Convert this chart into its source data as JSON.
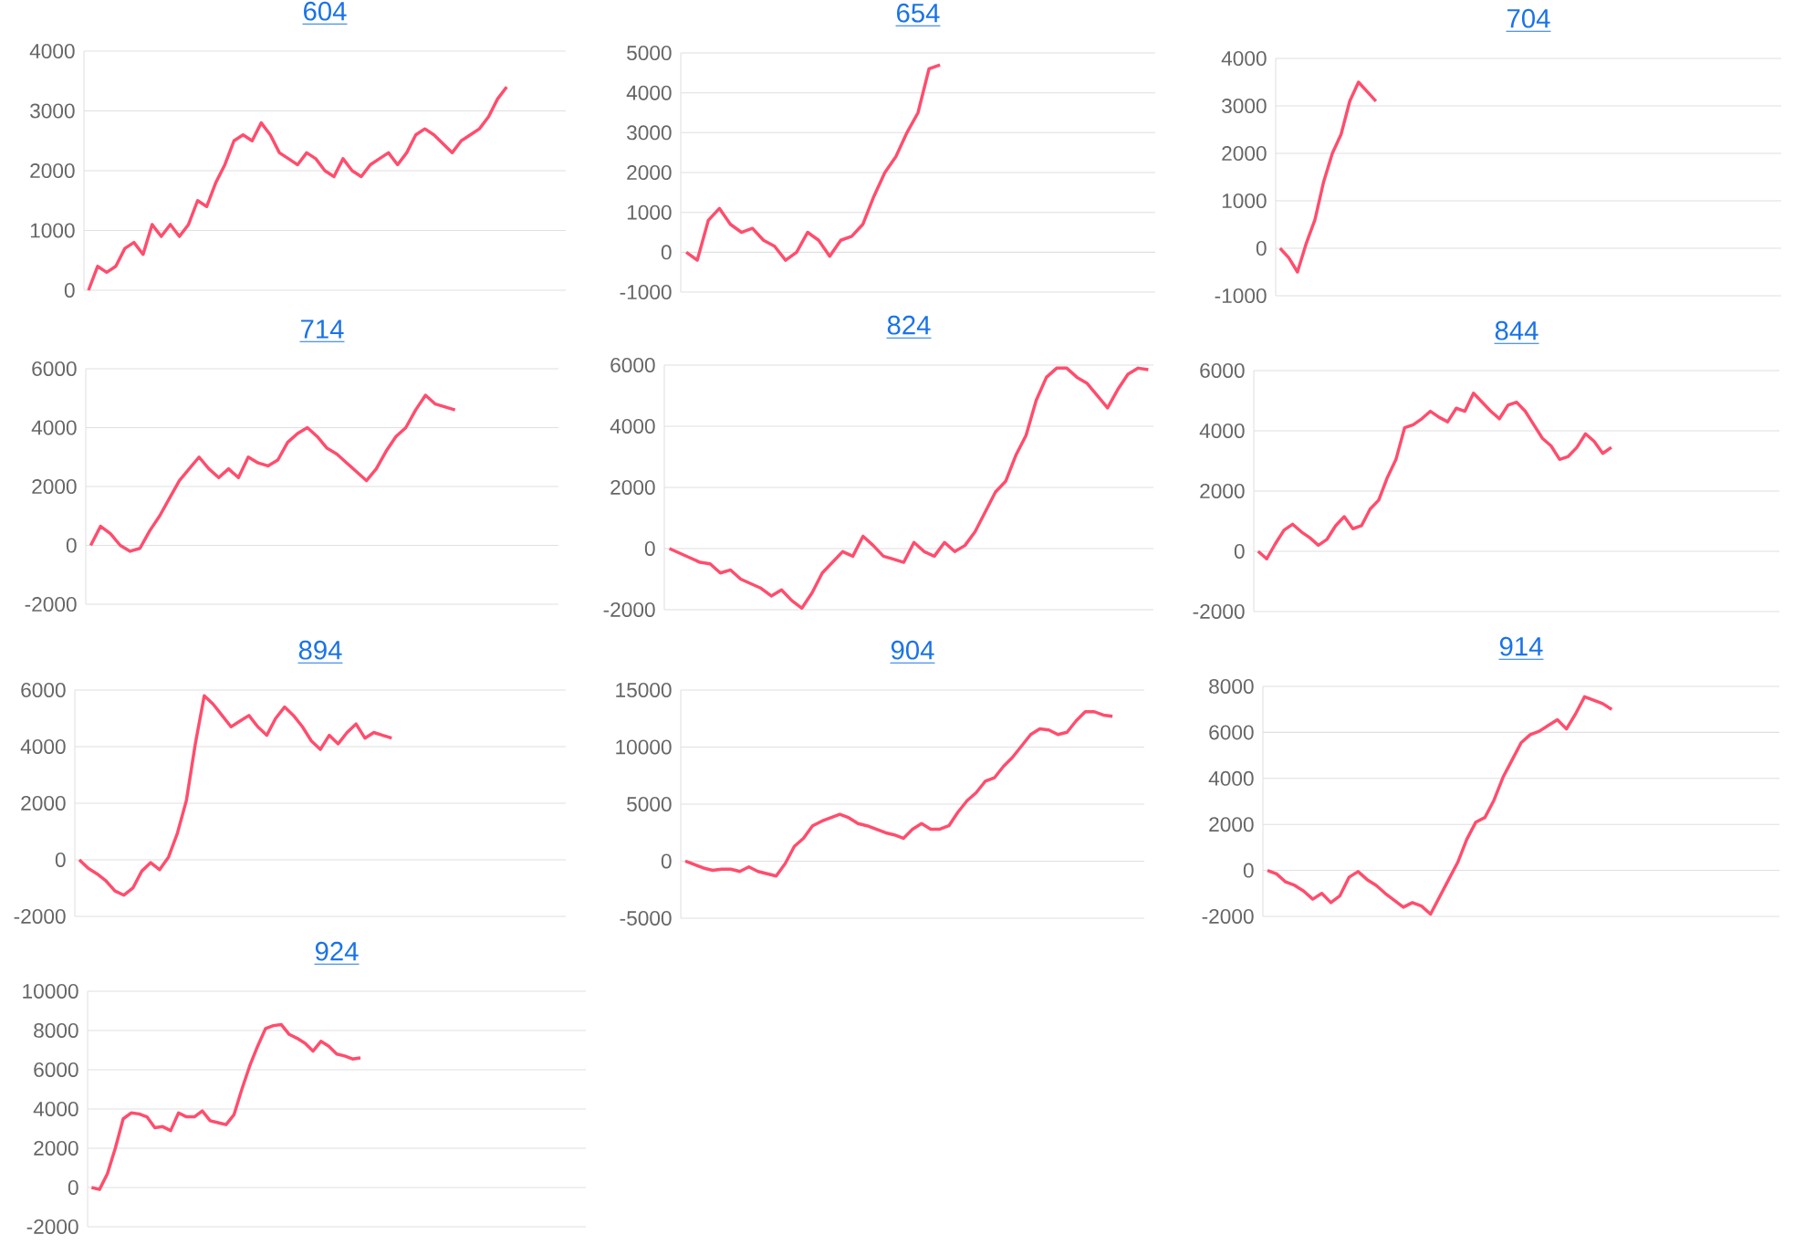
{
  "chart_data": [
    {
      "type": "line",
      "title": "604",
      "color": "#ff4d6d",
      "grid": "y",
      "tick_labels": "y",
      "ylim": [
        0,
        4000
      ],
      "yticks": [
        0,
        1000,
        2000,
        3000,
        4000
      ],
      "categories": [
        null,
        null,
        null,
        null,
        null,
        null,
        null,
        null,
        null,
        null,
        null,
        null,
        null,
        null,
        null,
        null,
        null,
        null,
        null,
        null,
        null,
        null,
        null,
        null,
        null,
        null,
        null,
        null,
        null,
        null,
        null,
        null,
        null,
        null,
        null,
        null,
        null,
        null,
        null,
        null,
        null,
        null,
        null,
        null,
        null,
        null,
        null,
        null,
        null,
        null,
        null,
        null,
        null
      ],
      "values": [
        0,
        400,
        300,
        400,
        700,
        800,
        600,
        1100,
        900,
        1100,
        900,
        1100,
        1500,
        1400,
        1800,
        2100,
        2500,
        2600,
        2500,
        2800,
        2600,
        2300,
        2200,
        2100,
        2300,
        2200,
        2000,
        1900,
        2200,
        2000,
        1900,
        2100,
        2200,
        2300,
        2100,
        2300,
        2600,
        2700,
        2600,
        2450,
        2300,
        2500,
        2600,
        2700,
        2900,
        3200,
        3400,
        null,
        null,
        null,
        null,
        null,
        null
      ]
    },
    {
      "type": "line",
      "title": "654",
      "color": "#ff4d6d",
      "grid": "y",
      "tick_labels": "y",
      "ylim": [
        -1000,
        5000
      ],
      "yticks": [
        -1000,
        0,
        1000,
        2000,
        3000,
        4000,
        5000
      ],
      "categories": [
        null,
        null,
        null,
        null,
        null,
        null,
        null,
        null,
        null,
        null,
        null,
        null,
        null,
        null,
        null,
        null,
        null,
        null,
        null,
        null,
        null,
        null,
        null,
        null,
        null,
        null,
        null,
        null,
        null,
        null,
        null,
        null,
        null,
        null,
        null,
        null,
        null,
        null,
        null,
        null,
        null,
        null,
        null
      ],
      "values": [
        0,
        -200,
        800,
        1100,
        700,
        500,
        600,
        300,
        150,
        -200,
        0,
        500,
        300,
        -100,
        300,
        400,
        700,
        1400,
        2000,
        2400,
        3000,
        3500,
        4600,
        4700,
        null,
        null,
        null,
        null,
        null,
        null,
        null,
        null,
        null,
        null,
        null,
        null,
        null,
        null,
        null,
        null,
        null,
        null,
        null
      ]
    },
    {
      "type": "line",
      "title": "704",
      "color": "#ff4d6d",
      "grid": "y",
      "tick_labels": "y",
      "ylim": [
        -1000,
        4000
      ],
      "yticks": [
        -1000,
        0,
        1000,
        2000,
        3000,
        4000
      ],
      "categories": [
        null,
        null,
        null,
        null,
        null,
        null,
        null,
        null,
        null,
        null,
        null,
        null,
        null,
        null,
        null,
        null,
        null,
        null,
        null,
        null,
        null,
        null,
        null,
        null,
        null,
        null,
        null,
        null,
        null,
        null,
        null,
        null,
        null,
        null,
        null,
        null,
        null,
        null,
        null,
        null,
        null,
        null,
        null,
        null,
        null,
        null,
        null,
        null,
        null,
        null,
        null,
        null,
        null,
        null,
        null,
        null,
        null,
        null
      ],
      "values": [
        0,
        -200,
        -500,
        100,
        600,
        1400,
        2000,
        2400,
        3100,
        3500,
        3300,
        3100,
        null,
        null,
        null,
        null,
        null,
        null,
        null,
        null,
        null,
        null,
        null,
        null,
        null,
        null,
        null,
        null,
        null,
        null,
        null,
        null,
        null,
        null,
        null,
        null,
        null,
        null,
        null,
        null,
        null,
        null,
        null,
        null,
        null,
        null,
        null,
        null,
        null,
        null,
        null,
        null,
        null,
        null,
        null,
        null,
        null,
        null
      ]
    },
    {
      "type": "line",
      "title": "714",
      "color": "#ff4d6d",
      "grid": "y",
      "tick_labels": "y",
      "ylim": [
        -2000,
        6000
      ],
      "yticks": [
        -2000,
        0,
        2000,
        4000,
        6000
      ],
      "categories": [
        null,
        null,
        null,
        null,
        null,
        null,
        null,
        null,
        null,
        null,
        null,
        null,
        null,
        null,
        null,
        null,
        null,
        null,
        null,
        null,
        null,
        null,
        null,
        null,
        null,
        null,
        null,
        null,
        null,
        null,
        null,
        null,
        null,
        null,
        null,
        null,
        null,
        null,
        null,
        null,
        null,
        null,
        null,
        null,
        null,
        null,
        null,
        null
      ],
      "values": [
        0,
        650,
        400,
        0,
        -200,
        -100,
        500,
        1000,
        1600,
        2200,
        2600,
        3000,
        2600,
        2300,
        2600,
        2300,
        3000,
        2800,
        2700,
        2900,
        3500,
        3800,
        4000,
        3700,
        3300,
        3100,
        2800,
        2500,
        2200,
        2600,
        3200,
        3700,
        4000,
        4600,
        5100,
        4800,
        4700,
        4600,
        null,
        null,
        null,
        null,
        null,
        null,
        null,
        null,
        null,
        null
      ]
    },
    {
      "type": "line",
      "title": "824",
      "color": "#ff4d6d",
      "grid": "y",
      "tick_labels": "y",
      "ylim": [
        -2000,
        6000
      ],
      "yticks": [
        -2000,
        0,
        2000,
        4000,
        6000
      ],
      "categories": [
        null,
        null,
        null,
        null,
        null,
        null,
        null,
        null,
        null,
        null,
        null,
        null,
        null,
        null,
        null,
        null,
        null,
        null,
        null,
        null,
        null,
        null,
        null,
        null,
        null,
        null,
        null,
        null,
        null,
        null,
        null,
        null,
        null,
        null,
        null,
        null,
        null,
        null,
        null,
        null,
        null,
        null,
        null,
        null,
        null,
        null,
        null,
        null
      ],
      "values": [
        0,
        -150,
        -300,
        -450,
        -500,
        -800,
        -700,
        -1000,
        -1150,
        -1300,
        -1550,
        -1350,
        -1700,
        -1950,
        -1450,
        -800,
        -450,
        -100,
        -250,
        400,
        100,
        -250,
        -350,
        -450,
        200,
        -100,
        -250,
        200,
        -100,
        100,
        550,
        1200,
        1850,
        2200,
        3050,
        3700,
        4850,
        5600,
        5900,
        5900,
        5600,
        5400,
        5000,
        4600,
        5200,
        5700,
        5900,
        5850
      ]
    },
    {
      "type": "line",
      "title": "844",
      "color": "#ff4d6d",
      "grid": "y",
      "tick_labels": "y",
      "ylim": [
        -2000,
        6000
      ],
      "yticks": [
        -2000,
        0,
        2000,
        4000,
        6000
      ],
      "categories": [
        null,
        null,
        null,
        null,
        null,
        null,
        null,
        null,
        null,
        null,
        null,
        null,
        null,
        null,
        null,
        null,
        null,
        null,
        null,
        null,
        null,
        null,
        null,
        null,
        null,
        null,
        null,
        null,
        null,
        null,
        null,
        null,
        null,
        null,
        null,
        null,
        null,
        null,
        null,
        null,
        null,
        null,
        null,
        null,
        null,
        null,
        null,
        null,
        null,
        null,
        null,
        null,
        null,
        null,
        null,
        null,
        null,
        null,
        null,
        null,
        null
      ],
      "values": [
        0,
        -250,
        250,
        700,
        900,
        650,
        450,
        200,
        400,
        850,
        1150,
        750,
        850,
        1400,
        1700,
        2450,
        3050,
        4100,
        4200,
        4400,
        4650,
        4450,
        4300,
        4750,
        4650,
        5250,
        4950,
        4650,
        4400,
        4850,
        4950,
        4650,
        4200,
        3750,
        3500,
        3050,
        3150,
        3450,
        3900,
        3650,
        3250,
        3450,
        null,
        null,
        null,
        null,
        null,
        null,
        null,
        null,
        null,
        null,
        null,
        null,
        null,
        null,
        null,
        null,
        null,
        null,
        null
      ]
    },
    {
      "type": "line",
      "title": "894",
      "color": "#ff4d6d",
      "grid": "y",
      "tick_labels": "y",
      "ylim": [
        -2000,
        6000
      ],
      "yticks": [
        -2000,
        0,
        2000,
        4000,
        6000
      ],
      "categories": [
        null,
        null,
        null,
        null,
        null,
        null,
        null,
        null,
        null,
        null,
        null,
        null,
        null,
        null,
        null,
        null,
        null,
        null,
        null,
        null,
        null,
        null,
        null,
        null,
        null,
        null,
        null,
        null,
        null,
        null,
        null,
        null,
        null,
        null,
        null,
        null,
        null,
        null,
        null,
        null,
        null,
        null,
        null,
        null,
        null,
        null,
        null,
        null,
        null,
        null,
        null,
        null,
        null,
        null,
        null
      ],
      "values": [
        0,
        -300,
        -500,
        -750,
        -1100,
        -1250,
        -1000,
        -400,
        -100,
        -350,
        100,
        950,
        2100,
        4100,
        5800,
        5500,
        5100,
        4700,
        4900,
        5100,
        4700,
        4400,
        5000,
        5400,
        5100,
        4700,
        4200,
        3900,
        4400,
        4100,
        4500,
        4800,
        4300,
        4500,
        4400,
        4300,
        null,
        null,
        null,
        null,
        null,
        null,
        null,
        null,
        null,
        null,
        null,
        null,
        null,
        null,
        null,
        null,
        null,
        null,
        null
      ]
    },
    {
      "type": "line",
      "title": "904",
      "color": "#ff4d6d",
      "grid": "y",
      "tick_labels": "y",
      "ylim": [
        -5000,
        15000
      ],
      "yticks": [
        -5000,
        0,
        5000,
        10000,
        15000
      ],
      "categories": [
        null,
        null,
        null,
        null,
        null,
        null,
        null,
        null,
        null,
        null,
        null,
        null,
        null,
        null,
        null,
        null,
        null,
        null,
        null,
        null,
        null,
        null,
        null,
        null,
        null,
        null,
        null,
        null,
        null,
        null,
        null,
        null,
        null,
        null,
        null,
        null,
        null,
        null,
        null,
        null,
        null,
        null,
        null,
        null,
        null,
        null,
        null,
        null,
        null,
        null,
        null
      ],
      "values": [
        0,
        -300,
        -600,
        -800,
        -700,
        -700,
        -900,
        -500,
        -900,
        -1100,
        -1300,
        -200,
        1300,
        2000,
        3100,
        3500,
        3800,
        4100,
        3800,
        3300,
        3100,
        2800,
        2500,
        2300,
        2000,
        2800,
        3300,
        2800,
        2800,
        3100,
        4300,
        5300,
        6000,
        7000,
        7300,
        8300,
        9100,
        10100,
        11100,
        11600,
        11500,
        11100,
        11300,
        12300,
        13100,
        13100,
        12800,
        12700,
        null,
        null,
        null
      ]
    },
    {
      "type": "line",
      "title": "914",
      "color": "#ff4d6d",
      "grid": "y",
      "tick_labels": "y",
      "ylim": [
        -2000,
        8000
      ],
      "yticks": [
        -2000,
        0,
        2000,
        4000,
        6000,
        8000
      ],
      "categories": [
        null,
        null,
        null,
        null,
        null,
        null,
        null,
        null,
        null,
        null,
        null,
        null,
        null,
        null,
        null,
        null,
        null,
        null,
        null,
        null,
        null,
        null,
        null,
        null,
        null,
        null,
        null,
        null,
        null,
        null,
        null,
        null,
        null,
        null,
        null,
        null,
        null,
        null,
        null,
        null,
        null,
        null,
        null,
        null,
        null,
        null,
        null,
        null,
        null,
        null,
        null,
        null,
        null,
        null,
        null,
        null,
        null
      ],
      "values": [
        0,
        -150,
        -500,
        -650,
        -900,
        -1250,
        -1000,
        -1400,
        -1100,
        -300,
        -50,
        -400,
        -650,
        -1000,
        -1300,
        -1600,
        -1400,
        -1550,
        -1900,
        -1150,
        -400,
        350,
        1350,
        2100,
        2300,
        3050,
        4050,
        4800,
        5550,
        5900,
        6050,
        6300,
        6550,
        6150,
        6800,
        7550,
        7400,
        7250,
        7000,
        null,
        null,
        null,
        null,
        null,
        null,
        null,
        null,
        null,
        null,
        null,
        null,
        null,
        null,
        null,
        null,
        null,
        null
      ]
    },
    {
      "type": "line",
      "title": "924",
      "color": "#ff4d6d",
      "grid": "y",
      "tick_labels": "y",
      "ylim": [
        -2000,
        10000
      ],
      "yticks": [
        -2000,
        0,
        2000,
        4000,
        6000,
        8000,
        10000
      ],
      "categories": [
        null,
        null,
        null,
        null,
        null,
        null,
        null,
        null,
        null,
        null,
        null,
        null,
        null,
        null,
        null,
        null,
        null,
        null,
        null,
        null,
        null,
        null,
        null,
        null,
        null,
        null,
        null,
        null,
        null,
        null,
        null,
        null,
        null,
        null,
        null,
        null,
        null,
        null,
        null,
        null,
        null,
        null,
        null,
        null,
        null,
        null,
        null,
        null,
        null,
        null,
        null,
        null,
        null,
        null,
        null,
        null,
        null,
        null,
        null,
        null,
        null,
        null,
        null
      ],
      "values": [
        0,
        -100,
        700,
        2000,
        3500,
        3800,
        3750,
        3600,
        3050,
        3100,
        2900,
        3800,
        3600,
        3600,
        3900,
        3400,
        3300,
        3200,
        3700,
        5000,
        6200,
        7200,
        8100,
        8250,
        8300,
        7800,
        7600,
        7350,
        6950,
        7450,
        7200,
        6800,
        6700,
        6550,
        6600,
        null,
        null,
        null,
        null,
        null,
        null,
        null,
        null,
        null,
        null,
        null,
        null,
        null,
        null,
        null,
        null,
        null,
        null,
        null,
        null,
        null,
        null,
        null,
        null,
        null,
        null,
        null,
        null
      ]
    }
  ]
}
